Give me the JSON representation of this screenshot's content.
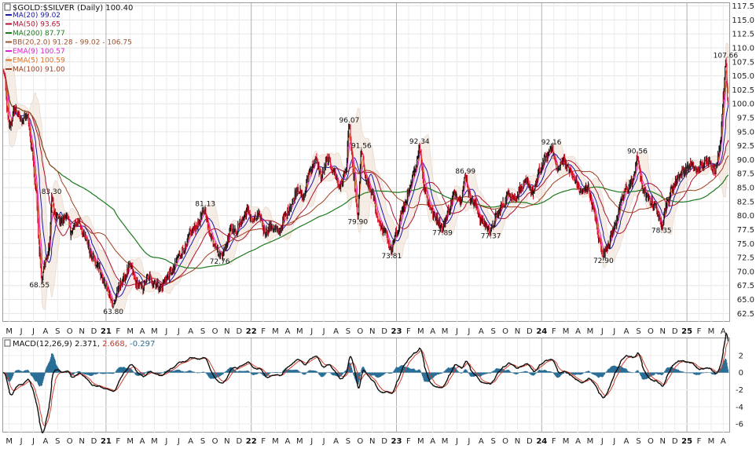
{
  "chart_data": [
    {
      "type": "line",
      "title": "$GOLD:$SILVER (Daily) 100.40",
      "y_axis_side": "right",
      "ylim": [
        61,
        118
      ],
      "y_ticks": [
        "117.5",
        "115.0",
        "112.5",
        "110.0",
        "107.5",
        "105.0",
        "102.5",
        "100.0",
        "97.5",
        "95.0",
        "92.5",
        "90.0",
        "87.5",
        "85.0",
        "82.5",
        "80.0",
        "77.5",
        "75.0",
        "72.5",
        "70.0",
        "67.5",
        "65.0",
        "62.5"
      ],
      "x_labels": [
        {
          "label": "M",
          "year": false
        },
        {
          "label": "J",
          "year": false
        },
        {
          "label": "J",
          "year": false
        },
        {
          "label": "A",
          "year": false
        },
        {
          "label": "S",
          "year": false
        },
        {
          "label": "O",
          "year": false
        },
        {
          "label": "N",
          "year": false
        },
        {
          "label": "D",
          "year": false
        },
        {
          "label": "21",
          "year": true
        },
        {
          "label": "F",
          "year": false
        },
        {
          "label": "M",
          "year": false
        },
        {
          "label": "A",
          "year": false
        },
        {
          "label": "M",
          "year": false
        },
        {
          "label": "J",
          "year": false
        },
        {
          "label": "J",
          "year": false
        },
        {
          "label": "A",
          "year": false
        },
        {
          "label": "S",
          "year": false
        },
        {
          "label": "O",
          "year": false
        },
        {
          "label": "N",
          "year": false
        },
        {
          "label": "D",
          "year": false
        },
        {
          "label": "22",
          "year": true
        },
        {
          "label": "F",
          "year": false
        },
        {
          "label": "M",
          "year": false
        },
        {
          "label": "A",
          "year": false
        },
        {
          "label": "M",
          "year": false
        },
        {
          "label": "J",
          "year": false
        },
        {
          "label": "J",
          "year": false
        },
        {
          "label": "A",
          "year": false
        },
        {
          "label": "S",
          "year": false
        },
        {
          "label": "O",
          "year": false
        },
        {
          "label": "N",
          "year": false
        },
        {
          "label": "D",
          "year": false
        },
        {
          "label": "23",
          "year": true
        },
        {
          "label": "F",
          "year": false
        },
        {
          "label": "M",
          "year": false
        },
        {
          "label": "A",
          "year": false
        },
        {
          "label": "M",
          "year": false
        },
        {
          "label": "J",
          "year": false
        },
        {
          "label": "J",
          "year": false
        },
        {
          "label": "A",
          "year": false
        },
        {
          "label": "S",
          "year": false
        },
        {
          "label": "O",
          "year": false
        },
        {
          "label": "N",
          "year": false
        },
        {
          "label": "D",
          "year": false
        },
        {
          "label": "24",
          "year": true
        },
        {
          "label": "F",
          "year": false
        },
        {
          "label": "M",
          "year": false
        },
        {
          "label": "A",
          "year": false
        },
        {
          "label": "M",
          "year": false
        },
        {
          "label": "J",
          "year": false
        },
        {
          "label": "J",
          "year": false
        },
        {
          "label": "A",
          "year": false
        },
        {
          "label": "S",
          "year": false
        },
        {
          "label": "O",
          "year": false
        },
        {
          "label": "N",
          "year": false
        },
        {
          "label": "D",
          "year": false
        },
        {
          "label": "25",
          "year": true
        },
        {
          "label": "F",
          "year": false
        },
        {
          "label": "M",
          "year": false
        },
        {
          "label": "A",
          "year": false
        }
      ],
      "legend": [
        {
          "label": "MA(20) 99.02",
          "color": "#1a1aa8"
        },
        {
          "label": "MA(50) 93.65",
          "color": "#b01030"
        },
        {
          "label": "MA(200) 87.77",
          "color": "#1e7a1e"
        },
        {
          "label": "BB(20,2.0) 91.28 - 99.02 - 106.75",
          "color": "#a0522d"
        },
        {
          "label": "EMA(9) 100.57",
          "color": "#e020d0"
        },
        {
          "label": "EMA(5) 100.59",
          "color": "#e07020"
        },
        {
          "label": "MA(100) 91.00",
          "color": "#a04020"
        }
      ],
      "annotations": [
        {
          "label": "107.66",
          "x": 59.7,
          "y": 107.66,
          "pos": "above"
        },
        {
          "label": "96.07",
          "x": 28.6,
          "y": 96.07,
          "pos": "above"
        },
        {
          "label": "91.56",
          "x": 29.6,
          "y": 91.56,
          "pos": "above"
        },
        {
          "label": "92.34",
          "x": 34.4,
          "y": 92.34,
          "pos": "above"
        },
        {
          "label": "92.16",
          "x": 45.3,
          "y": 92.16,
          "pos": "above"
        },
        {
          "label": "90.56",
          "x": 52.4,
          "y": 90.56,
          "pos": "above"
        },
        {
          "label": "86.99",
          "x": 38.2,
          "y": 86.99,
          "pos": "above"
        },
        {
          "label": "83.30",
          "x": 4.0,
          "y": 83.3,
          "pos": "above"
        },
        {
          "label": "81.13",
          "x": 16.7,
          "y": 81.13,
          "pos": "above"
        },
        {
          "label": "79.90",
          "x": 29.3,
          "y": 79.9,
          "pos": "below"
        },
        {
          "label": "77.89",
          "x": 36.3,
          "y": 77.89,
          "pos": "below"
        },
        {
          "label": "77.37",
          "x": 40.3,
          "y": 77.37,
          "pos": "below"
        },
        {
          "label": "78.35",
          "x": 54.4,
          "y": 78.35,
          "pos": "below"
        },
        {
          "label": "73.81",
          "x": 32.1,
          "y": 73.81,
          "pos": "below"
        },
        {
          "label": "72.90",
          "x": 49.6,
          "y": 72.9,
          "pos": "below"
        },
        {
          "label": "72.76",
          "x": 17.9,
          "y": 72.76,
          "pos": "below"
        },
        {
          "label": "68.55",
          "x": 3.0,
          "y": 68.55,
          "pos": "below"
        },
        {
          "label": "63.80",
          "x": 9.1,
          "y": 63.8,
          "pos": "below"
        }
      ],
      "series": [
        {
          "name": "MA(20) 99.02",
          "key": "ma20",
          "color": "#1a1aa8"
        },
        {
          "name": "MA(50) 93.65",
          "key": "ma50",
          "color": "#b01030"
        },
        {
          "name": "MA(200) 87.77",
          "key": "ma200",
          "color": "#1e7a1e"
        },
        {
          "name": "EMA(9) 100.57",
          "key": "ema9",
          "color": "#e020d0"
        },
        {
          "name": "EMA(5) 100.59",
          "key": "ema5",
          "color": "#e07020"
        },
        {
          "name": "MA(100) 91.00",
          "key": "ma100",
          "color": "#a04020"
        }
      ],
      "price_keypoints": [
        [
          0,
          106
        ],
        [
          0.5,
          96
        ],
        [
          1.0,
          99
        ],
        [
          1.5,
          97
        ],
        [
          2.0,
          98
        ],
        [
          2.3,
          93
        ],
        [
          2.7,
          85
        ],
        [
          3.0,
          74
        ],
        [
          3.2,
          68.55
        ],
        [
          3.5,
          72
        ],
        [
          3.8,
          74
        ],
        [
          4.0,
          83.3
        ],
        [
          4.3,
          80
        ],
        [
          4.8,
          79
        ],
        [
          5.2,
          80
        ],
        [
          5.6,
          77
        ],
        [
          6.2,
          79
        ],
        [
          6.8,
          76
        ],
        [
          7.3,
          73
        ],
        [
          7.8,
          71
        ],
        [
          8.3,
          68
        ],
        [
          8.8,
          66
        ],
        [
          9.1,
          63.8
        ],
        [
          9.5,
          67
        ],
        [
          10,
          69
        ],
        [
          10.5,
          71
        ],
        [
          11,
          68
        ],
        [
          11.5,
          67
        ],
        [
          12,
          69
        ],
        [
          12.5,
          68
        ],
        [
          13,
          67
        ],
        [
          13.5,
          69
        ],
        [
          14,
          70
        ],
        [
          14.5,
          73
        ],
        [
          15,
          74
        ],
        [
          15.5,
          77
        ],
        [
          16,
          78
        ],
        [
          16.4,
          80
        ],
        [
          16.7,
          81.13
        ],
        [
          17.0,
          77
        ],
        [
          17.5,
          75
        ],
        [
          17.9,
          72.76
        ],
        [
          18.3,
          74
        ],
        [
          18.8,
          78
        ],
        [
          19.2,
          77
        ],
        [
          19.7,
          79
        ],
        [
          20.2,
          81
        ],
        [
          20.6,
          79
        ],
        [
          21.2,
          80
        ],
        [
          21.6,
          77
        ],
        [
          22.2,
          78
        ],
        [
          22.8,
          77
        ],
        [
          23.3,
          80
        ],
        [
          23.8,
          82
        ],
        [
          24.3,
          85
        ],
        [
          24.8,
          83
        ],
        [
          25.3,
          88
        ],
        [
          25.8,
          90
        ],
        [
          26.3,
          87
        ],
        [
          26.8,
          90
        ],
        [
          27.3,
          88
        ],
        [
          27.8,
          85
        ],
        [
          28.3,
          88
        ],
        [
          28.6,
          96.07
        ],
        [
          28.9,
          88
        ],
        [
          29.3,
          79.9
        ],
        [
          29.6,
          91.56
        ],
        [
          30.0,
          86
        ],
        [
          30.5,
          84
        ],
        [
          31.0,
          79
        ],
        [
          31.5,
          77
        ],
        [
          32.1,
          73.81
        ],
        [
          32.5,
          77
        ],
        [
          33.0,
          81
        ],
        [
          33.5,
          84
        ],
        [
          34.0,
          88
        ],
        [
          34.4,
          92.34
        ],
        [
          34.8,
          85
        ],
        [
          35.2,
          82
        ],
        [
          35.6,
          80
        ],
        [
          36.3,
          77.89
        ],
        [
          36.8,
          81
        ],
        [
          37.3,
          84
        ],
        [
          37.8,
          83
        ],
        [
          38.2,
          86.99
        ],
        [
          38.6,
          83
        ],
        [
          39.0,
          82
        ],
        [
          39.5,
          79
        ],
        [
          40.3,
          77.37
        ],
        [
          40.8,
          80
        ],
        [
          41.3,
          82
        ],
        [
          41.8,
          84
        ],
        [
          42.3,
          83
        ],
        [
          42.8,
          85
        ],
        [
          43.3,
          86
        ],
        [
          43.8,
          84
        ],
        [
          44.3,
          88
        ],
        [
          44.8,
          90
        ],
        [
          45.3,
          92.16
        ],
        [
          45.8,
          88
        ],
        [
          46.3,
          90
        ],
        [
          46.8,
          88
        ],
        [
          47.3,
          86
        ],
        [
          47.8,
          84
        ],
        [
          48.3,
          85
        ],
        [
          48.8,
          81
        ],
        [
          49.2,
          76
        ],
        [
          49.6,
          72.9
        ],
        [
          50.0,
          75
        ],
        [
          50.5,
          78
        ],
        [
          51.0,
          82
        ],
        [
          51.5,
          85
        ],
        [
          52.0,
          86
        ],
        [
          52.4,
          90.56
        ],
        [
          52.8,
          85
        ],
        [
          53.3,
          83
        ],
        [
          53.8,
          82
        ],
        [
          54.4,
          78.35
        ],
        [
          54.8,
          82
        ],
        [
          55.3,
          85
        ],
        [
          55.8,
          87
        ],
        [
          56.3,
          88
        ],
        [
          56.8,
          89
        ],
        [
          57.3,
          88
        ],
        [
          57.8,
          89
        ],
        [
          58.3,
          90
        ],
        [
          58.8,
          88
        ],
        [
          59.2,
          92
        ],
        [
          59.5,
          101
        ],
        [
          59.7,
          107.66
        ],
        [
          59.9,
          100.4
        ]
      ]
    },
    {
      "type": "line",
      "title": "MACD(12,26,9) 2.371, 2.668, -0.297",
      "title_parts": [
        {
          "text": "MACD(12,26,9) 2.371,",
          "color": "#111111"
        },
        {
          "text": " 2.668,",
          "color": "#c0392b"
        },
        {
          "text": " -0.297",
          "color": "#2a6f97"
        }
      ],
      "ylim": [
        -7,
        4
      ],
      "y_ticks": [
        "2",
        "0",
        "-2",
        "-4",
        "-6"
      ],
      "colors": {
        "macd": "#111111",
        "signal": "#d04030",
        "histogram": "#2a6f97"
      }
    }
  ]
}
